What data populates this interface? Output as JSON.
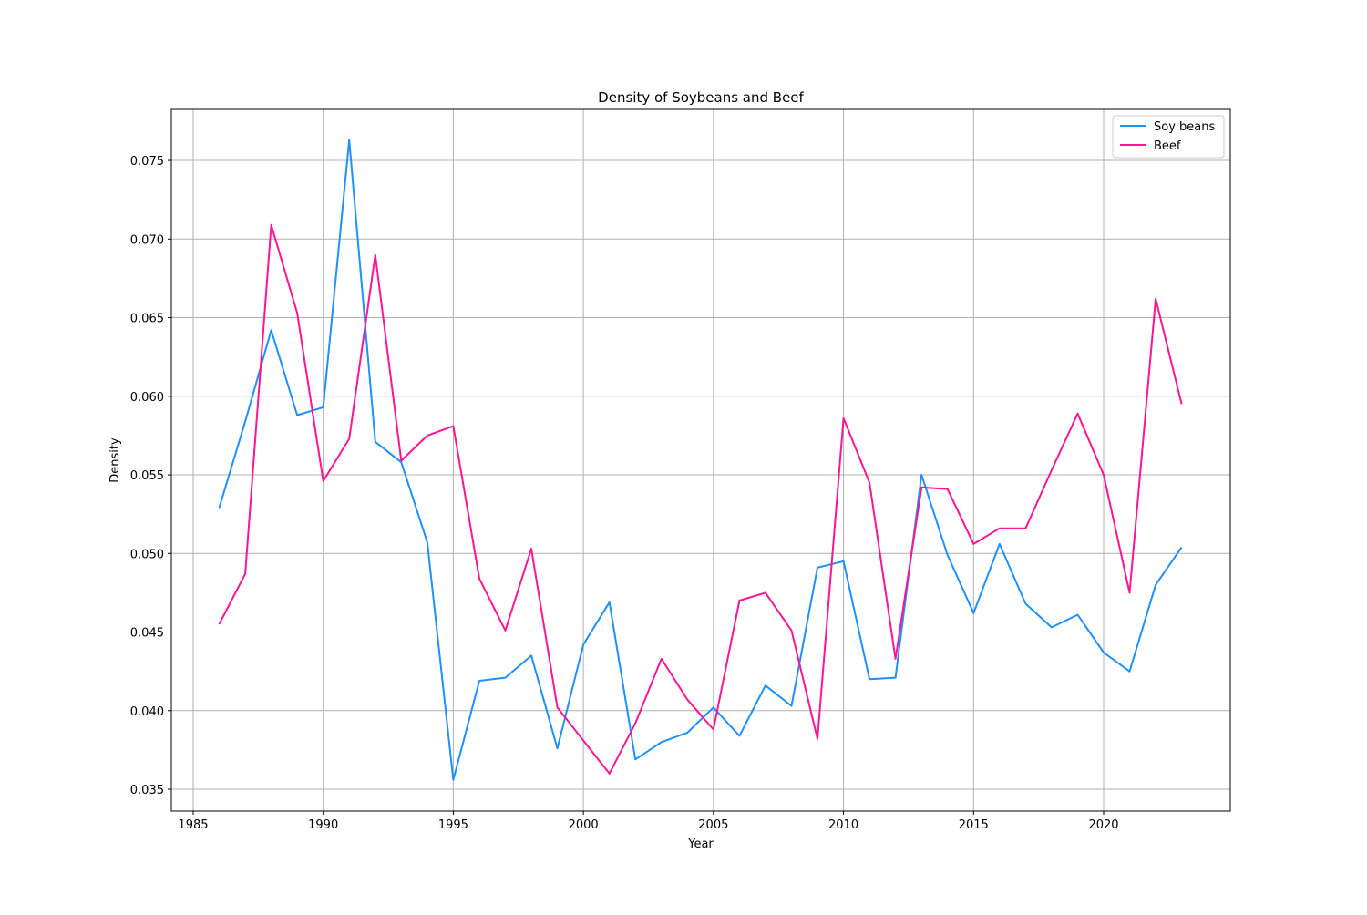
{
  "chart_data": {
    "type": "line",
    "title": "Density of Soybeans and Beef",
    "xlabel": "Year",
    "ylabel": "Density",
    "xlim": [
      1984.16,
      2024.87
    ],
    "ylim": [
      0.03361,
      0.07825
    ],
    "xticks": [
      1985,
      1990,
      1995,
      2000,
      2005,
      2010,
      2015,
      2020
    ],
    "yticks": [
      0.035,
      0.04,
      0.045,
      0.05,
      0.055,
      0.06,
      0.065,
      0.07,
      0.075
    ],
    "ytick_labels": [
      "0.035",
      "0.040",
      "0.045",
      "0.050",
      "0.055",
      "0.060",
      "0.065",
      "0.070",
      "0.075"
    ],
    "grid": true,
    "legend_position": "top-right",
    "x": [
      1986,
      1987,
      1988,
      1989,
      1990,
      1991,
      1992,
      1993,
      1994,
      1995,
      1996,
      1997,
      1998,
      1999,
      2000,
      2001,
      2002,
      2003,
      2004,
      2005,
      2006,
      2007,
      2008,
      2009,
      2010,
      2011,
      2012,
      2013,
      2014,
      2015,
      2016,
      2017,
      2018,
      2019,
      2020,
      2021,
      2022,
      2023
    ],
    "series": [
      {
        "name": "Soy beans",
        "color": "#1e90ff",
        "values": [
          0.0529,
          0.0584,
          0.0642,
          0.0588,
          0.0593,
          0.0763,
          0.0571,
          0.0558,
          0.0507,
          0.0356,
          0.0419,
          0.0421,
          0.0435,
          0.0376,
          0.0442,
          0.0469,
          0.0369,
          0.038,
          0.0386,
          0.0402,
          0.0384,
          0.0416,
          0.0403,
          0.0491,
          0.0495,
          0.042,
          0.0421,
          0.055,
          0.0499,
          0.0462,
          0.0506,
          0.0468,
          0.0453,
          0.0461,
          0.0437,
          0.0425,
          0.048,
          0.0504
        ]
      },
      {
        "name": "Beef",
        "color": "#ff1493",
        "values": [
          0.0455,
          0.0487,
          0.0709,
          0.0653,
          0.0546,
          0.0573,
          0.069,
          0.0559,
          0.0575,
          0.0581,
          0.0484,
          0.0451,
          0.0503,
          0.0402,
          0.0381,
          0.036,
          0.0392,
          0.0433,
          0.0407,
          0.0388,
          0.047,
          0.0475,
          0.0451,
          0.0382,
          0.0586,
          0.0545,
          0.0433,
          0.0542,
          0.0541,
          0.0506,
          0.0516,
          0.0516,
          0.0553,
          0.0589,
          0.055,
          0.0475,
          0.0662,
          0.0595
        ]
      }
    ]
  }
}
